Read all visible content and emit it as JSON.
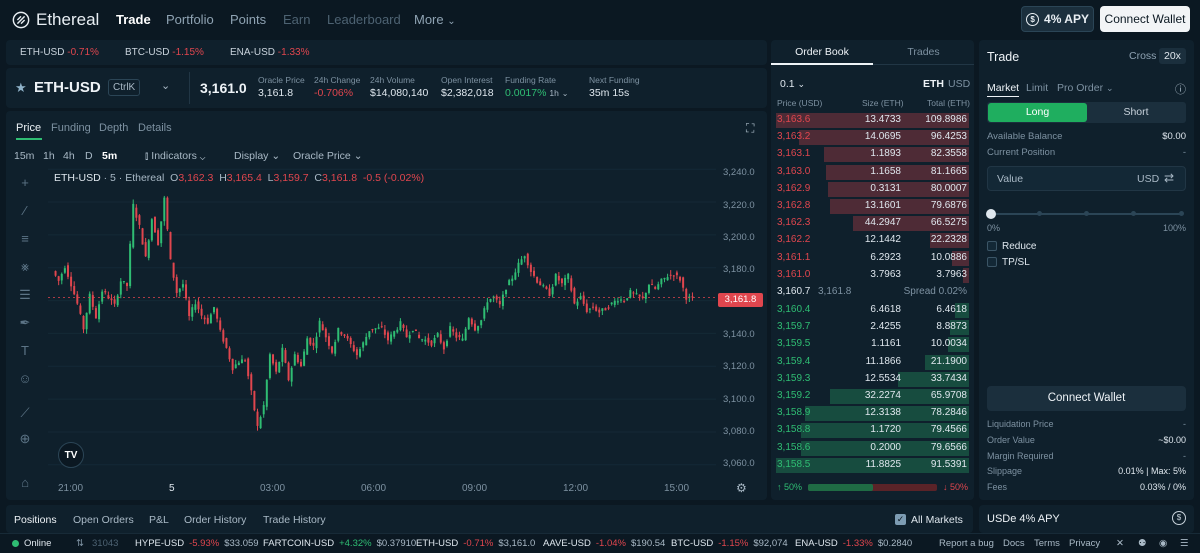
{
  "nav": {
    "brand": "Ethereal",
    "links": [
      {
        "label": "Trade",
        "state": "active"
      },
      {
        "label": "Portfolio",
        "state": "normal"
      },
      {
        "label": "Points",
        "state": "normal"
      },
      {
        "label": "Earn",
        "state": "disabled"
      },
      {
        "label": "Leaderboard",
        "state": "disabled"
      },
      {
        "label": "More",
        "state": "normal"
      }
    ],
    "apy_label": "4% APY",
    "connect_label": "Connect Wallet"
  },
  "tickers": [
    {
      "symbol": "ETH-USD",
      "change": "-0.71%"
    },
    {
      "symbol": "BTC-USD",
      "change": "-1.15%"
    },
    {
      "symbol": "ENA-USD",
      "change": "-1.33%"
    }
  ],
  "market": {
    "symbol": "ETH-USD",
    "shortcut": "CtrlK",
    "price": "3,161.0",
    "stats": [
      {
        "label": "Oracle Price",
        "value": "3,161.8",
        "tone": "normal"
      },
      {
        "label": "24h Change",
        "value": "-0.706%",
        "tone": "neg"
      },
      {
        "label": "24h Volume",
        "value": "$14,080,140",
        "tone": "normal"
      },
      {
        "label": "Open Interest",
        "value": "$2,382,018",
        "tone": "normal"
      },
      {
        "label": "Funding Rate",
        "value": "0.0017%",
        "tone": "pos",
        "suffix": "1h"
      },
      {
        "label": "Next Funding",
        "value": "35m 15s",
        "tone": "normal"
      }
    ]
  },
  "chart": {
    "tabs": [
      "Price",
      "Funding",
      "Depth",
      "Details"
    ],
    "timeframes": [
      "15m",
      "1h",
      "4h",
      "D",
      "5m"
    ],
    "menus": [
      "Indicators",
      "Display",
      "Oracle Price"
    ],
    "legend": {
      "symbol": "ETH-USD",
      "interval": "5",
      "source": "Ethereal",
      "o": "3,162.3",
      "h": "3,165.4",
      "l": "3,159.7",
      "c": "3,161.8",
      "chg": "-0.5 (-0.02%)"
    },
    "last_price_tag": "3,161.8",
    "watermark": "TV"
  },
  "chart_data": {
    "type": "candlestick",
    "title": "ETH-USD · 5 · Ethereal",
    "interval": "5m",
    "ylim": [
      3055,
      3245
    ],
    "y_ticks": [
      "3,240.0",
      "3,220.0",
      "3,200.0",
      "3,180.0",
      "3,160.0",
      "3,140.0",
      "3,120.0",
      "3,100.0",
      "3,080.0",
      "3,060.0"
    ],
    "x_ticks": [
      "21:00",
      "5",
      "03:00",
      "06:00",
      "09:00",
      "12:00",
      "15:00"
    ],
    "close_path": [
      3178,
      3172,
      3181,
      3170,
      3158,
      3143,
      3163,
      3150,
      3166,
      3162,
      3157,
      3172,
      3169,
      3218,
      3205,
      3186,
      3210,
      3195,
      3222,
      3184,
      3165,
      3170,
      3150,
      3159,
      3151,
      3147,
      3156,
      3141,
      3131,
      3119,
      3123,
      3124,
      3104,
      3083,
      3096,
      3127,
      3116,
      3130,
      3112,
      3127,
      3120,
      3137,
      3132,
      3147,
      3138,
      3129,
      3142,
      3139,
      3133,
      3127,
      3134,
      3142,
      3143,
      3143,
      3136,
      3141,
      3146,
      3138,
      3143,
      3137,
      3136,
      3134,
      3139,
      3131,
      3143,
      3138,
      3136,
      3150,
      3143,
      3148,
      3160,
      3162,
      3157,
      3168,
      3174,
      3182,
      3188,
      3178,
      3172,
      3168,
      3164,
      3175,
      3170,
      3175,
      3158,
      3162,
      3154,
      3156,
      3153,
      3155,
      3158,
      3161,
      3160,
      3165,
      3163,
      3161,
      3170,
      3167,
      3172,
      3175,
      3176,
      3173,
      3162,
      3161
    ]
  },
  "orderbook": {
    "tabs": [
      "Order Book",
      "Trades"
    ],
    "tick": "0.1",
    "units": [
      "ETH",
      "USD"
    ],
    "columns": [
      "Price (USD)",
      "Size (ETH)",
      "Total (ETH)"
    ],
    "asks": [
      {
        "price": "3,163.6",
        "size": "13.4733",
        "total": "109.8986",
        "depth": 1.0
      },
      {
        "price": "3,163.2",
        "size": "14.0695",
        "total": "96.4253",
        "depth": 0.88
      },
      {
        "price": "3,163.1",
        "size": "1.1893",
        "total": "82.3558",
        "depth": 0.75
      },
      {
        "price": "3,163.0",
        "size": "1.1658",
        "total": "81.1665",
        "depth": 0.74
      },
      {
        "price": "3,162.9",
        "size": "0.3131",
        "total": "80.0007",
        "depth": 0.73
      },
      {
        "price": "3,162.8",
        "size": "13.1601",
        "total": "79.6876",
        "depth": 0.72
      },
      {
        "price": "3,162.3",
        "size": "44.2947",
        "total": "66.5275",
        "depth": 0.6
      },
      {
        "price": "3,162.2",
        "size": "12.1442",
        "total": "22.2328",
        "depth": 0.2
      },
      {
        "price": "3,161.1",
        "size": "6.2923",
        "total": "10.0886",
        "depth": 0.09
      },
      {
        "price": "3,161.0",
        "size": "3.7963",
        "total": "3.7963",
        "depth": 0.03
      }
    ],
    "mid": {
      "price": "3,160.7",
      "oracle": "3,161.8",
      "spread": "Spread 0.02%"
    },
    "bids": [
      {
        "price": "3,160.4",
        "size": "6.4618",
        "total": "6.4618",
        "depth": 0.07
      },
      {
        "price": "3,159.7",
        "size": "2.4255",
        "total": "8.8873",
        "depth": 0.1
      },
      {
        "price": "3,159.5",
        "size": "1.1161",
        "total": "10.0034",
        "depth": 0.11
      },
      {
        "price": "3,159.4",
        "size": "11.1866",
        "total": "21.1900",
        "depth": 0.23
      },
      {
        "price": "3,159.3",
        "size": "12.5534",
        "total": "33.7434",
        "depth": 0.37
      },
      {
        "price": "3,159.2",
        "size": "32.2274",
        "total": "65.9708",
        "depth": 0.72
      },
      {
        "price": "3,158.9",
        "size": "12.3138",
        "total": "78.2846",
        "depth": 0.85
      },
      {
        "price": "3,158.8",
        "size": "1.1720",
        "total": "79.4566",
        "depth": 0.87
      },
      {
        "price": "3,158.6",
        "size": "0.2000",
        "total": "79.6566",
        "depth": 0.87
      },
      {
        "price": "3,158.5",
        "size": "11.8825",
        "total": "91.5391",
        "depth": 1.0
      }
    ],
    "balance": {
      "bid": "↑ 50%",
      "ask": "↓ 50%",
      "bid_share": 0.5
    }
  },
  "trade": {
    "title": "Trade",
    "margin_modes": [
      "Cross",
      "20x"
    ],
    "order_types": [
      "Market",
      "Limit",
      "Pro Order"
    ],
    "sides": [
      "Long",
      "Short"
    ],
    "available_label": "Available Balance",
    "available_value": "$0.00",
    "position_label": "Current Position",
    "position_value": "-",
    "value_placeholder": "Value",
    "value_unit": "USD",
    "slider_min": "0%",
    "slider_max": "100%",
    "slider_value": 0,
    "reduce_label": "Reduce",
    "tpsl_label": "TP/SL",
    "connect_label": "Connect Wallet",
    "details": [
      {
        "label": "Liquidation Price",
        "value": "-"
      },
      {
        "label": "Order Value",
        "value": "~$0.00"
      },
      {
        "label": "Margin Required",
        "value": "-"
      },
      {
        "label": "Slippage",
        "value": "0.01% | Max: 5%"
      },
      {
        "label": "Fees",
        "value": "0.03% / 0%"
      }
    ],
    "usde_label": "USDe 4% APY"
  },
  "bottom": {
    "tabs": [
      "Positions",
      "Open Orders",
      "P&L",
      "Order History",
      "Trade History"
    ],
    "all_markets": "All Markets"
  },
  "footer": {
    "status": "Online",
    "partial_price": "31043",
    "ticker": [
      {
        "symbol": "HYPE-USD",
        "change": "-5.93%",
        "price": "$33.059",
        "tone": "neg"
      },
      {
        "symbol": "FARTCOIN-USD",
        "change": "+4.32%",
        "price": "$0.37910",
        "tone": "pos"
      },
      {
        "symbol": "ETH-USD",
        "change": "-0.71%",
        "price": "$3,161.0",
        "tone": "neg"
      },
      {
        "symbol": "AAVE-USD",
        "change": "-1.04%",
        "price": "$190.54",
        "tone": "neg"
      },
      {
        "symbol": "BTC-USD",
        "change": "-1.15%",
        "price": "$92,074",
        "tone": "neg"
      },
      {
        "symbol": "ENA-USD",
        "change": "-1.33%",
        "price": "$0.2840",
        "tone": "neg"
      }
    ],
    "links": [
      "Report a bug",
      "Docs",
      "Terms",
      "Privacy"
    ]
  },
  "colors": {
    "up": "#2fbd73",
    "down": "#e0464e",
    "bg": "#0b1822",
    "panel": "#0f202c",
    "accent_long": "#1fae5f"
  }
}
